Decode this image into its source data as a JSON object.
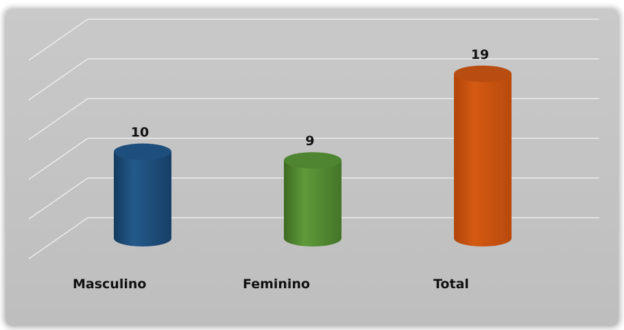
{
  "chart_data": {
    "type": "bar",
    "categories": [
      "Masculino",
      "Feminino",
      "Total"
    ],
    "values": [
      10,
      9,
      19
    ],
    "data_labels": [
      "10",
      "9",
      "19"
    ],
    "colors": [
      "#1f4e7a",
      "#548a33",
      "#c8530e"
    ],
    "cap_colors": [
      "#1e4e7c",
      "#4f8530",
      "#b74d10"
    ],
    "ylim": [
      0,
      25
    ],
    "grid": true,
    "legend": "none",
    "style": "3d-cylinder"
  }
}
